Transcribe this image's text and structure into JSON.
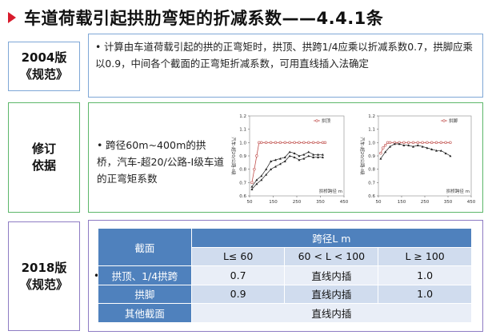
{
  "title": "车道荷载引起拱肋弯矩的折减系数——4.4.1条",
  "sections": [
    {
      "label_line1": "2004版",
      "label_line2": "《规范》",
      "text": "计算由车道荷载引起的拱的正弯矩时，拱顶、拱跨1/4应乘以折减系数0.7，拱脚应乘以0.9，中间各个截面的正弯矩折减系数，可用直线插入法确定"
    },
    {
      "label_line1": "修订",
      "label_line2": "依据",
      "text": "跨径60m~400m的拱桥，汽车-超20/公路-I级车道的正弯矩系数"
    },
    {
      "label_line1": "2018版",
      "label_line2": "《规范》"
    }
  ],
  "charts": [
    {
      "legend": "拱顶",
      "ylabel": "汽车-超20/公路-I级",
      "xlabel": "拱桥跨径 m",
      "yticks": [
        "0.6",
        "0.7",
        "0.8",
        "0.9",
        "1.0",
        "1.1",
        "1.2"
      ],
      "xticks": [
        "50",
        "150",
        "250",
        "350",
        "450"
      ]
    },
    {
      "legend": "拱脚",
      "ylabel": "汽车-超20/公路-I级",
      "xlabel": "拱桥跨径 m",
      "yticks": [
        "0.6",
        "0.7",
        "0.8",
        "0.9",
        "1.0",
        "1.1",
        "1.2"
      ],
      "xticks": [
        "50",
        "150",
        "250",
        "350",
        "450"
      ]
    }
  ],
  "chart_data": [
    {
      "type": "line",
      "title": "",
      "xlabel": "拱桥跨径 m",
      "ylabel": "汽车-超20/公路-I级",
      "xlim": [
        50,
        450
      ],
      "ylim": [
        0.6,
        1.2
      ],
      "series": [
        {
          "name": "拱顶",
          "color": "#c0504d",
          "x": [
            60,
            70,
            80,
            90,
            100,
            120,
            140,
            160,
            180,
            200,
            220,
            240,
            260,
            280,
            300,
            320,
            340,
            360,
            370
          ],
          "y": [
            0.7,
            0.8,
            0.9,
            1.0,
            1.0,
            1.0,
            1.0,
            1.0,
            1.0,
            1.0,
            1.0,
            1.0,
            1.0,
            1.0,
            1.0,
            1.0,
            1.0,
            1.0,
            1.0
          ]
        },
        {
          "name": "",
          "color": "#222222",
          "x": [
            60,
            80,
            100,
            120,
            140,
            160,
            180,
            200,
            220,
            240,
            260,
            280,
            300,
            320,
            340,
            360
          ],
          "y": [
            0.67,
            0.72,
            0.75,
            0.8,
            0.86,
            0.87,
            0.88,
            0.89,
            0.93,
            0.92,
            0.9,
            0.91,
            0.93,
            0.91,
            0.91,
            0.91
          ]
        },
        {
          "name": "",
          "color": "#222222",
          "x": [
            60,
            80,
            100,
            120,
            140,
            160,
            180,
            200,
            220,
            240,
            260,
            280,
            300,
            320,
            340,
            360
          ],
          "y": [
            0.65,
            0.69,
            0.72,
            0.76,
            0.8,
            0.82,
            0.84,
            0.86,
            0.9,
            0.89,
            0.87,
            0.88,
            0.9,
            0.89,
            0.89,
            0.89
          ]
        }
      ]
    },
    {
      "type": "line",
      "title": "",
      "xlabel": "拱桥跨径 m",
      "ylabel": "汽车-超20/公路-I级",
      "xlim": [
        50,
        450
      ],
      "ylim": [
        0.6,
        1.2
      ],
      "series": [
        {
          "name": "拱脚",
          "color": "#c0504d",
          "x": [
            60,
            70,
            80,
            90,
            100,
            120,
            140,
            160,
            180,
            200,
            220,
            240,
            260,
            280,
            300,
            320,
            340,
            360
          ],
          "y": [
            0.92,
            0.96,
            0.98,
            1.0,
            1.0,
            1.0,
            1.0,
            1.0,
            1.0,
            1.0,
            1.0,
            1.0,
            1.0,
            1.0,
            1.0,
            1.0,
            1.0,
            1.0
          ]
        },
        {
          "name": "",
          "color": "#222222",
          "x": [
            60,
            80,
            100,
            120,
            140,
            160,
            180,
            200,
            220,
            240,
            260,
            280,
            300,
            320,
            340,
            360
          ],
          "y": [
            0.88,
            0.93,
            0.97,
            0.99,
            0.99,
            0.98,
            0.98,
            0.97,
            0.98,
            0.97,
            0.96,
            0.95,
            0.94,
            0.94,
            0.92,
            0.9
          ]
        }
      ]
    },
    {
      "type": "table",
      "title": "",
      "header_top": [
        "截面",
        "跨径L m"
      ],
      "columns": [
        "L≤ 60",
        "60 < L < 100",
        "L ≥ 100"
      ],
      "rows": [
        {
          "section": "拱顶、1/4拱跨",
          "values": [
            "0.7",
            "直线内插",
            "1.0"
          ]
        },
        {
          "section": "拱脚",
          "values": [
            "0.9",
            "直线内插",
            "1.0"
          ]
        },
        {
          "section": "其他截面",
          "values": [
            "直线内插"
          ]
        }
      ]
    }
  ]
}
